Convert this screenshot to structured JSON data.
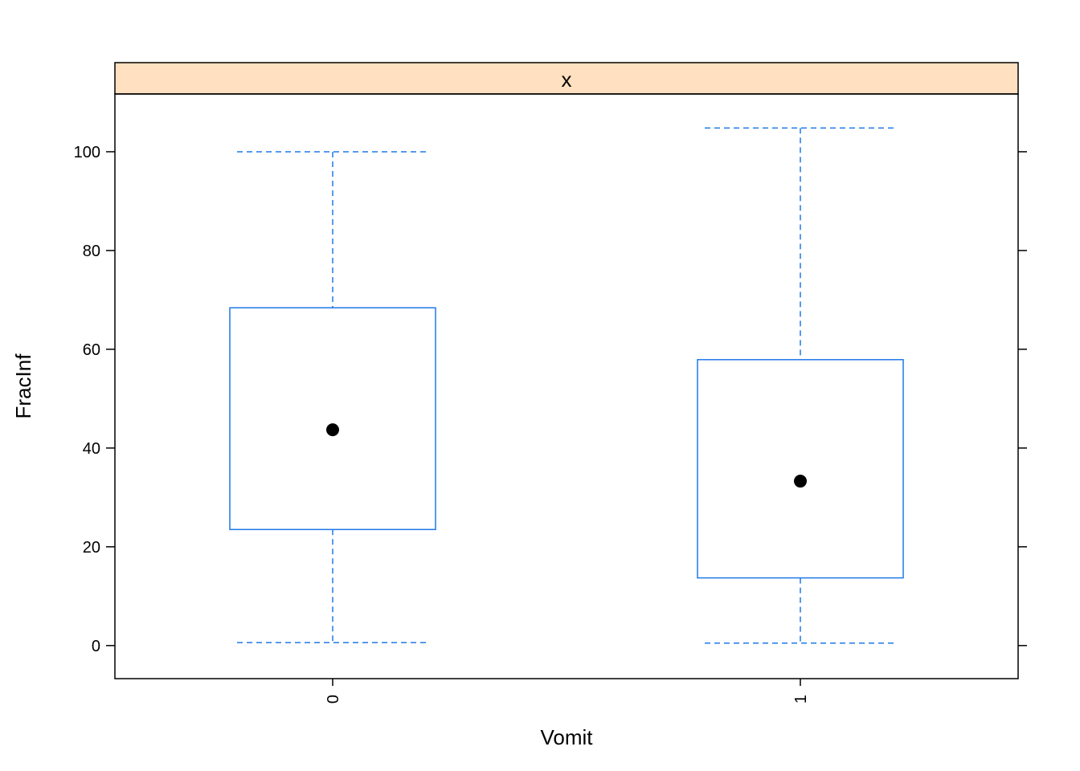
{
  "chart_data": {
    "type": "box",
    "panel_title": "x",
    "xlabel": "Vomit",
    "ylabel": "FracInf",
    "categories": [
      "0",
      "1"
    ],
    "boxes": [
      {
        "category": "0",
        "whisker_low": 0.6,
        "q1": 23.5,
        "median": 43.7,
        "q3": 68.4,
        "whisker_high": 100.0
      },
      {
        "category": "1",
        "whisker_low": 0.5,
        "q1": 13.7,
        "median": 33.3,
        "q3": 57.9,
        "whisker_high": 104.8
      }
    ],
    "yticks": [
      0,
      20,
      40,
      60,
      80,
      100
    ],
    "ylim": [
      -6.7,
      111.7
    ],
    "grid": false,
    "legend": "none",
    "colors": {
      "box": "#1f78e8",
      "median_dot": "#000000",
      "strip_fill": "#ffe0c0",
      "frame": "#000000"
    }
  }
}
